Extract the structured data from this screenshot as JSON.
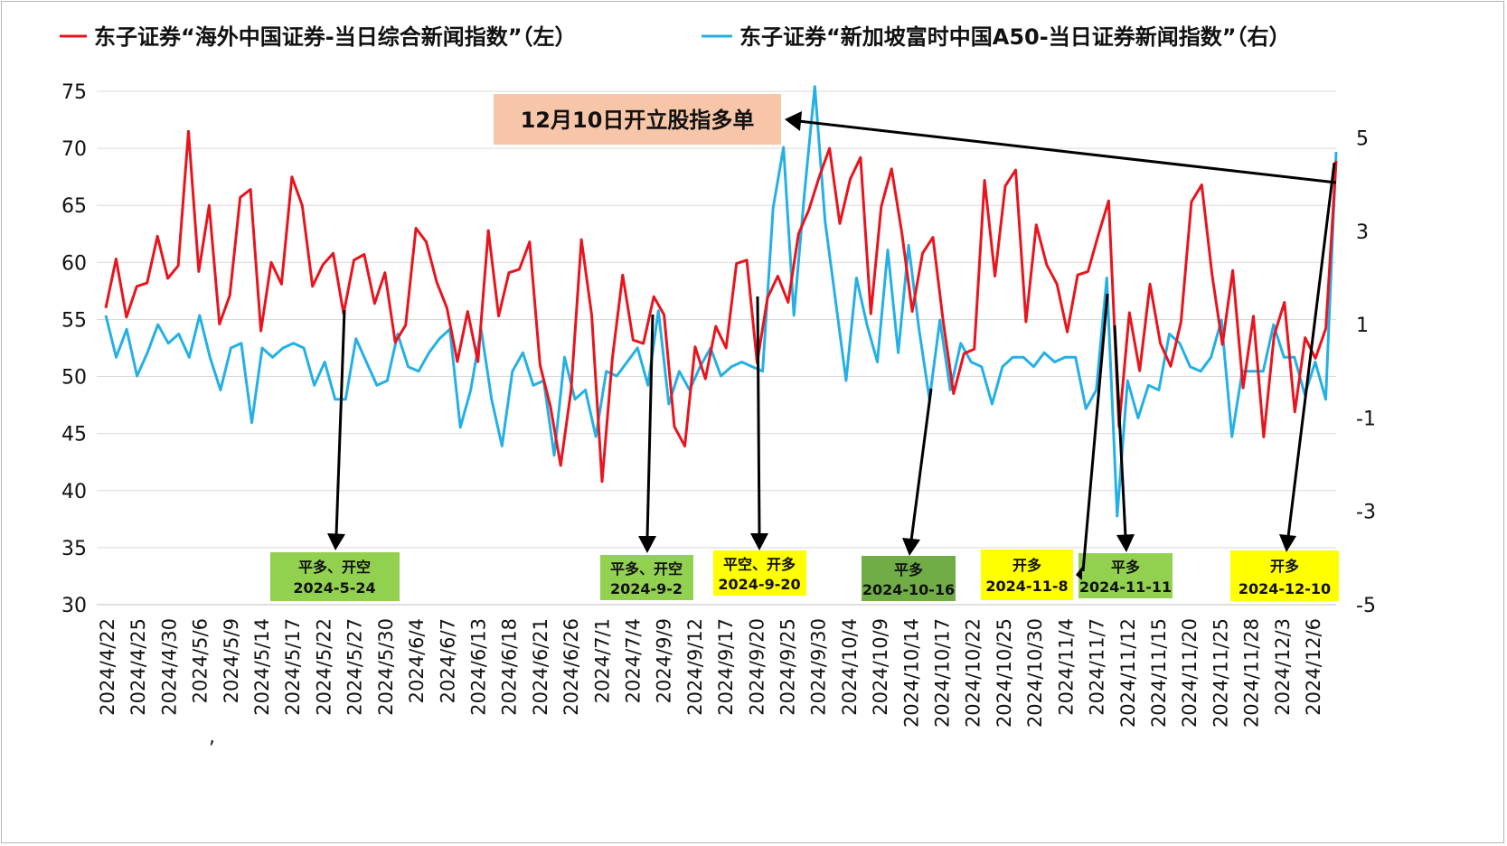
{
  "chart_data": {
    "type": "line",
    "legend": {
      "left_series": "东子证券“海外中国证券-当日综合新闻指数”（左）",
      "right_series": "东子证券“新加坡富时中国A50-当日证券新闻指数”（右）"
    },
    "series_colors": {
      "left": "#e8141e",
      "right": "#24b0e5"
    },
    "ylim_left": [
      30,
      75
    ],
    "ylim_right": [
      -5,
      6
    ],
    "yticks_left": [
      "30",
      "35",
      "40",
      "45",
      "50",
      "55",
      "60",
      "65",
      "70",
      "75"
    ],
    "yticks_right": [
      "-5",
      "-3",
      "-1",
      "1",
      "3",
      "5"
    ],
    "xticks": [
      "2024/4/22",
      "2024/4/25",
      "2024/4/30",
      "2024/5/6",
      "2024/5/9",
      "2024/5/14",
      "2024/5/17",
      "2024/5/22",
      "2024/5/27",
      "2024/5/30",
      "2024/6/4",
      "2024/6/7",
      "2024/6/13",
      "2024/6/18",
      "2024/6/21",
      "2024/6/26",
      "2024/7/1",
      "2024/7/4",
      "2024/9/9",
      "2024/9/12",
      "2024/9/17",
      "2024/9/20",
      "2024/9/25",
      "2024/9/30",
      "2024/10/4",
      "2024/10/9",
      "2024/10/14",
      "2024/10/17",
      "2024/10/22",
      "2024/10/25",
      "2024/10/30",
      "2024/11/4",
      "2024/11/7",
      "2024/11/12",
      "2024/11/15",
      "2024/11/20",
      "2024/11/25",
      "2024/11/28",
      "2024/12/3",
      "2024/12/6"
    ],
    "stray_mark": ",",
    "series": [
      {
        "name": "东子证券“海外中国证券-当日综合新闻指数”（左）",
        "axis": "left",
        "values": [
          56,
          60.3,
          55.2,
          57.9,
          58.2,
          62.3,
          58.6,
          59.7,
          71.5,
          59.2,
          65,
          54.6,
          57.1,
          65.7,
          66.4,
          54,
          60,
          58.1,
          67.5,
          65,
          57.9,
          59.8,
          60.8,
          55.5,
          60.2,
          60.7,
          56.4,
          59.1,
          53,
          54.5,
          63,
          61.8,
          58.3,
          56,
          51.3,
          55.7,
          51.3,
          62.8,
          55.3,
          59.1,
          59.4,
          61.8,
          51,
          47.4,
          42.2,
          48.8,
          62,
          55.4,
          40.8,
          51.6,
          58.9,
          53.2,
          52.9,
          57,
          55.4,
          45.6,
          43.9,
          52.6,
          49.8,
          54.4,
          52.5,
          59.9,
          60.2,
          51.2,
          56.9,
          58.8,
          56.5,
          62.5,
          64.6,
          67.5,
          70,
          63.4,
          67.3,
          69.2,
          55.5,
          64.9,
          68.2,
          62.6,
          55.7,
          60.8,
          62.2,
          54.8,
          48.5,
          52,
          52.4,
          67.2,
          58.8,
          66.7,
          68.1,
          54.8,
          63.3,
          59.8,
          58.1,
          53.9,
          58.9,
          59.2,
          62.4,
          65.4,
          45.6,
          55.6,
          50.5,
          58.1,
          52.9,
          50.9,
          54.8,
          65.3,
          66.8,
          58.9,
          52.8,
          59.3,
          49,
          55.3,
          44.7,
          53.6,
          56.5,
          46.9,
          53.4,
          51.6,
          54.2,
          68.9
        ]
      },
      {
        "name": "东子证券“新加坡富时中国A50-当日证券新闻指数”（右）",
        "axis": "right",
        "values": [
          1.2,
          0.3,
          0.9,
          -0.1,
          0.4,
          1,
          0.6,
          0.8,
          0.3,
          1.2,
          0.3,
          -0.4,
          0.5,
          0.6,
          -1.1,
          0.5,
          0.3,
          0.5,
          0.6,
          0.5,
          -0.3,
          0.2,
          -0.6,
          -0.6,
          0.7,
          0.2,
          -0.3,
          -0.2,
          0.8,
          0.1,
          0,
          0.4,
          0.7,
          0.9,
          -1.2,
          -0.4,
          0.9,
          -0.6,
          -1.6,
          0,
          0.4,
          -0.3,
          -0.2,
          -1.8,
          0.3,
          -0.6,
          -0.4,
          -1.4,
          0,
          -0.1,
          0.2,
          0.5,
          -0.3,
          1.3,
          -0.7,
          0,
          -0.4,
          0.1,
          0.5,
          -0.1,
          0.1,
          0.2,
          0.1,
          0,
          3.5,
          4.8,
          1.2,
          3.8,
          6.1,
          3.2,
          1.5,
          -0.2,
          2,
          1,
          0.2,
          2.6,
          0.4,
          2.7,
          0.9,
          -0.6,
          1.1,
          -0.4,
          0.6,
          0.2,
          0.1,
          -0.7,
          0.1,
          0.3,
          0.3,
          0.1,
          0.4,
          0.2,
          0.3,
          0.3,
          -0.8,
          -0.4,
          2,
          -3.1,
          -0.2,
          -1,
          -0.3,
          -0.4,
          0.8,
          0.6,
          0.1,
          0,
          0.3,
          1.1,
          -1.4,
          0,
          0,
          0,
          1,
          0.3,
          0.3,
          -0.5,
          0.2,
          -0.6,
          4.7
        ]
      }
    ],
    "annotations": [
      {
        "text": "12月10日开立股指多单",
        "style": "salmon"
      },
      {
        "lines": [
          "平多、开空",
          "2024-5-24"
        ],
        "style": "green"
      },
      {
        "lines": [
          "平多、开空",
          "2024-9-2"
        ],
        "style": "green"
      },
      {
        "lines": [
          "平空、开多",
          "2024-9-20"
        ],
        "style": "yellow"
      },
      {
        "lines": [
          "平多",
          "2024-10-16"
        ],
        "style": "darkgreen"
      },
      {
        "lines": [
          "开多",
          "2024-11-8"
        ],
        "style": "yellow"
      },
      {
        "lines": [
          "平多",
          "2024-11-11"
        ],
        "style": "green"
      },
      {
        "lines": [
          "开多",
          "2024-12-10"
        ],
        "style": "yellow"
      }
    ]
  }
}
